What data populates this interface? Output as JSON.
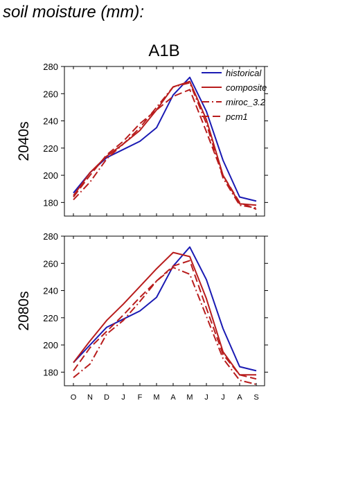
{
  "page": {
    "title": "soil moisture (mm):"
  },
  "chart_data": {
    "type": "line",
    "title": "A1B",
    "x": [
      "O",
      "N",
      "D",
      "J",
      "F",
      "M",
      "A",
      "M",
      "J",
      "J",
      "A",
      "S"
    ],
    "ylim": [
      170,
      280
    ],
    "yticks": [
      180,
      200,
      220,
      240,
      260,
      280
    ],
    "legend": {
      "position": "top-right",
      "entries": [
        {
          "name": "historical",
          "color": "#1a1ab3",
          "dash": "solid"
        },
        {
          "name": "composite",
          "color": "#b81c1c",
          "dash": "solid"
        },
        {
          "name": "miroc_3.2",
          "color": "#b81c1c",
          "dash": "dashdot"
        },
        {
          "name": "pcm1",
          "color": "#b81c1c",
          "dash": "dash"
        }
      ]
    },
    "panels": [
      {
        "label": "2040s",
        "series": [
          {
            "name": "historical",
            "values": [
              187,
              202,
              213,
              219,
              225,
              235,
              259,
              272,
              247,
              211,
              184,
              181
            ]
          },
          {
            "name": "composite",
            "values": [
              185,
              202,
              214,
              223,
              233,
              248,
              265,
              269,
              241,
              200,
              179,
              178
            ]
          },
          {
            "name": "miroc_3.2",
            "values": [
              182,
              195,
              212,
              223,
              235,
              250,
              265,
              268,
              238,
              198,
              178,
              176
            ]
          },
          {
            "name": "pcm1",
            "values": [
              184,
              200,
              215,
              225,
              238,
              248,
              258,
              263,
              232,
              200,
              180,
              175
            ]
          }
        ]
      },
      {
        "label": "2080s",
        "series": [
          {
            "name": "historical",
            "values": [
              187,
              200,
              213,
              219,
              225,
              235,
              258,
              272,
              248,
              212,
              184,
              181
            ]
          },
          {
            "name": "composite",
            "values": [
              187,
              203,
              218,
              230,
              243,
              256,
              268,
              265,
              234,
              195,
              178,
              178
            ]
          },
          {
            "name": "miroc_3.2",
            "values": [
              176,
              186,
              208,
              218,
              232,
              247,
              257,
              252,
              221,
              190,
              174,
              171
            ]
          },
          {
            "name": "pcm1",
            "values": [
              181,
              198,
              210,
              222,
              235,
              247,
              258,
              262,
              227,
              193,
              178,
              175
            ]
          }
        ]
      }
    ]
  }
}
